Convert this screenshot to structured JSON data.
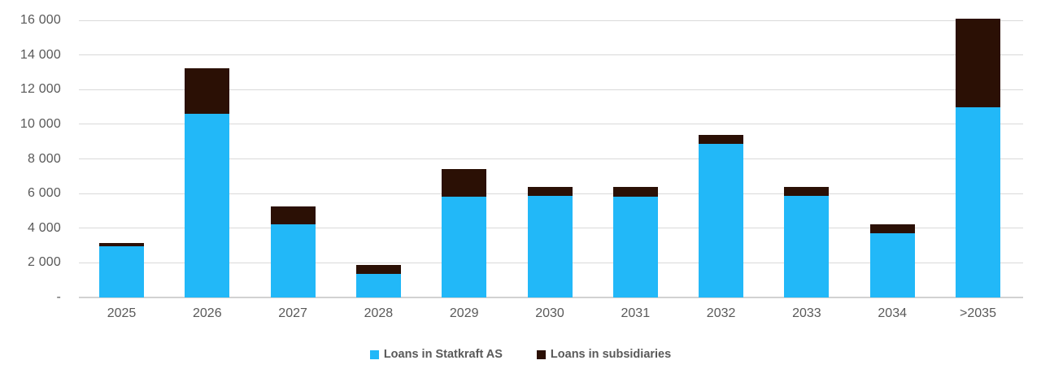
{
  "chart_data": {
    "type": "bar",
    "stacked": true,
    "title": "",
    "xlabel": "",
    "ylabel": "",
    "categories": [
      "2025",
      "2026",
      "2027",
      "2028",
      "2029",
      "2030",
      "2031",
      "2032",
      "2033",
      "2034",
      ">2035"
    ],
    "series": [
      {
        "name": "Loans in Statkraft AS",
        "color": "#22B8F8",
        "values": [
          2950,
          10600,
          4200,
          1350,
          5800,
          5850,
          5800,
          8850,
          5850,
          3700,
          11000
        ]
      },
      {
        "name": "Loans in subsidiaries",
        "color": "#2B1005",
        "values": [
          200,
          2650,
          1050,
          550,
          1600,
          550,
          600,
          550,
          550,
          500,
          5100
        ]
      }
    ],
    "ylim": [
      0,
      16000
    ],
    "ytick_step": 2000,
    "yticks": [
      {
        "value": 0,
        "label": "-"
      },
      {
        "value": 2000,
        "label": "2 000"
      },
      {
        "value": 4000,
        "label": "4 000"
      },
      {
        "value": 6000,
        "label": "6 000"
      },
      {
        "value": 8000,
        "label": "8 000"
      },
      {
        "value": 10000,
        "label": "10 000"
      },
      {
        "value": 12000,
        "label": "12 000"
      },
      {
        "value": 14000,
        "label": "14 000"
      },
      {
        "value": 16000,
        "label": "16 000"
      }
    ],
    "grid": true,
    "legend_position": "bottom"
  },
  "colors": {
    "gridline": "#d9d9d9",
    "axis_line": "#d2d2d2",
    "tick_text": "#595959",
    "legend_text": "#595959",
    "background": "#ffffff"
  }
}
